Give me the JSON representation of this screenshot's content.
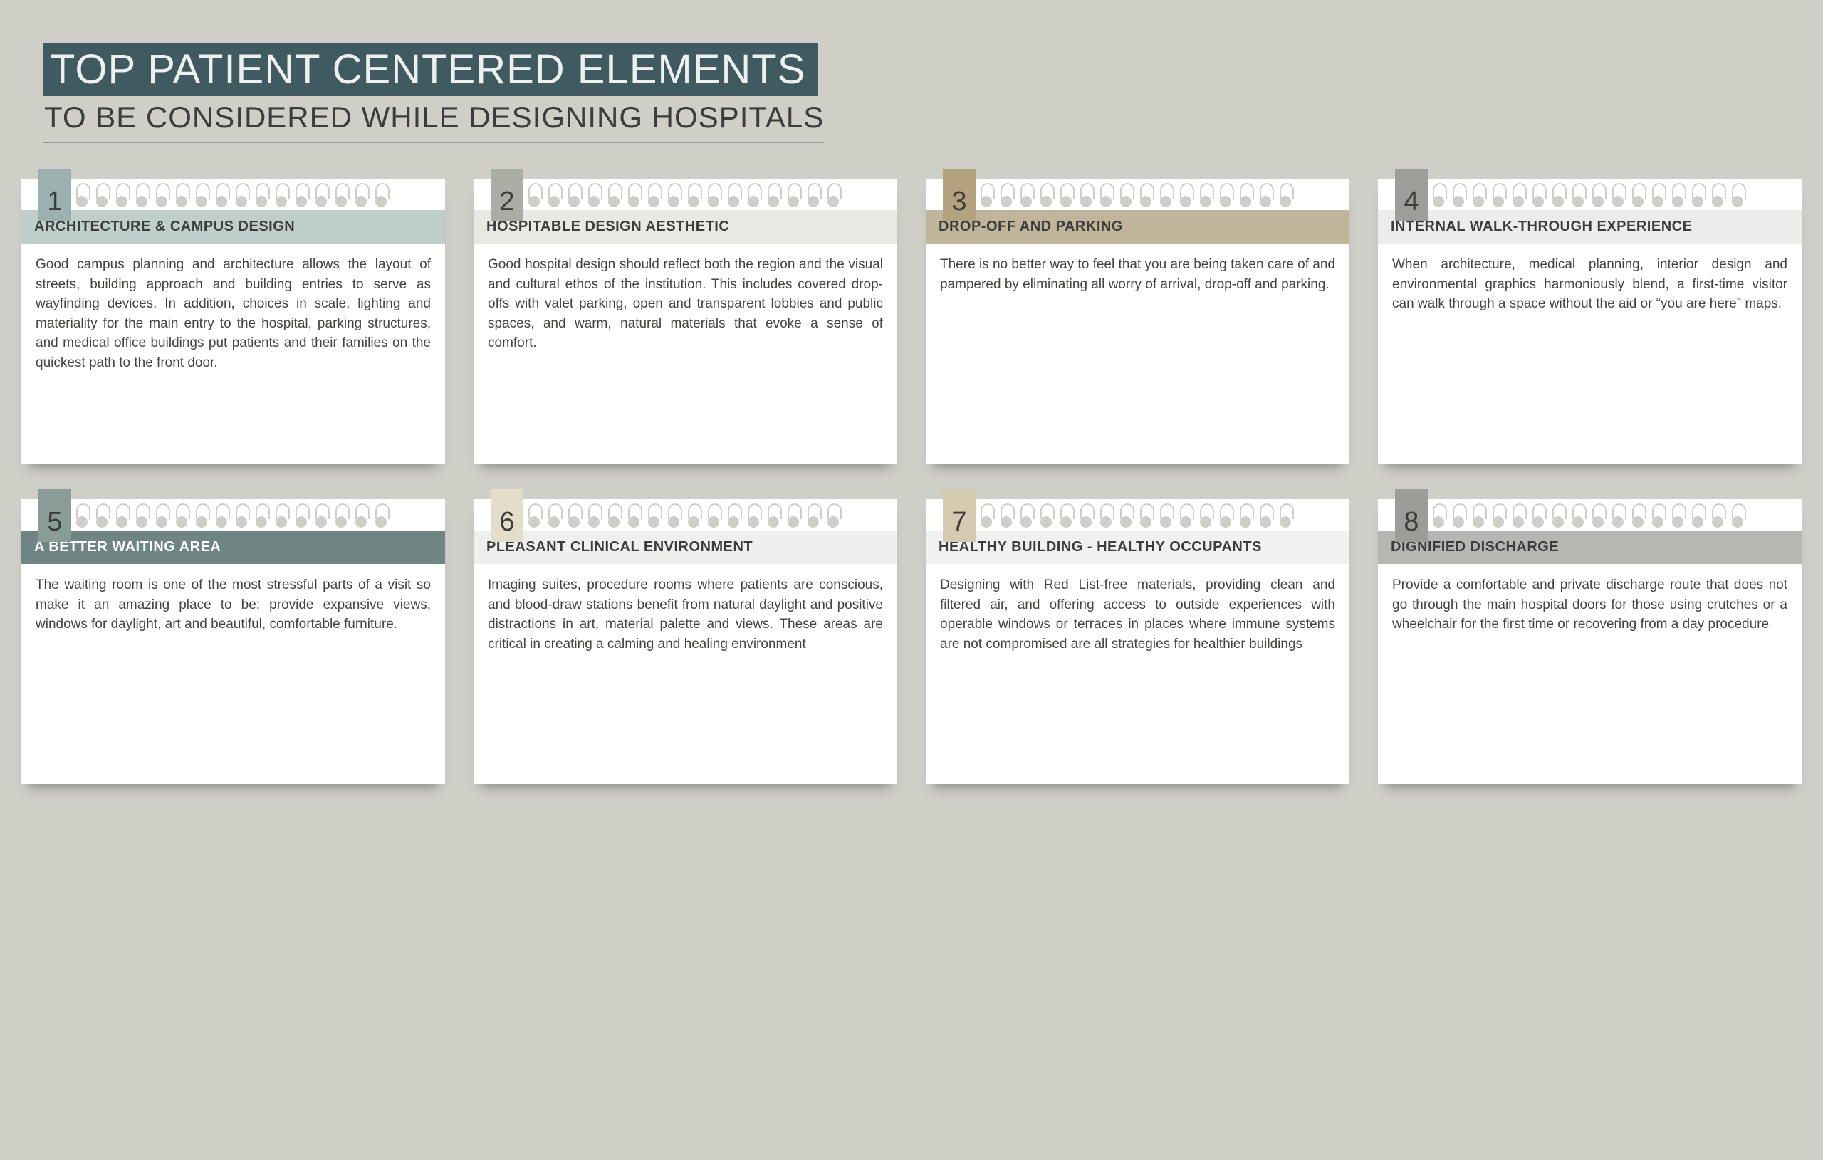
{
  "header": {
    "title_main": "TOP PATIENT CENTERED ELEMENTS",
    "title_sub": "TO BE CONSIDERED WHILE DESIGNING HOSPITALS",
    "title_main_bg": "#3f5a60",
    "title_main_color": "#eef0ef",
    "title_sub_color": "#3b3d3c"
  },
  "page": {
    "background_color": "#cfcfc8",
    "card_background": "#ffffff",
    "body_text_color": "#444542",
    "grid_columns": 4,
    "grid_rows": 2
  },
  "cards": [
    {
      "number": "1",
      "tab_color": "#9cb0af",
      "heading": "ARCHITECTURE & CAMPUS DESIGN",
      "heading_bg": "#c0cecb",
      "body": "Good campus planning and architecture allows the layout of streets, building approach and building entries to serve as wayfinding devices. In addition, choices in scale, lighting and materiality for the main entry to the hospital, parking structures, and medical office buildings put patients and their families on the quickest path to the front door."
    },
    {
      "number": "2",
      "tab_color": "#a9ada4",
      "heading": "HOSPITABLE DESIGN AESTHETIC",
      "heading_bg": "#e8e9e3",
      "body": "Good hospital design should reflect both the region and the visual and cultural ethos of the institution. This includes covered drop-offs with valet parking, open and transparent lobbies and public spaces, and warm, natural materials that evoke a sense of comfort."
    },
    {
      "number": "3",
      "tab_color": "#b4a27f",
      "heading": "DROP-OFF AND PARKING",
      "heading_bg": "#c0b49b",
      "body": "There is no better way to feel that you are being taken care of and pampered by eliminating all worry of arrival, drop-off and parking."
    },
    {
      "number": "4",
      "tab_color": "#9d9d99",
      "heading": "INTERNAL WALK-THROUGH EXPERIENCE",
      "heading_bg": "#ececea",
      "body": "When architecture, medical planning, interior design and environmental graphics harmoniously blend, a first-time visitor can walk through a space without the aid or “you are here” maps."
    },
    {
      "number": "5",
      "tab_color": "#8a9c98",
      "heading": "A BETTER WAITING AREA",
      "heading_bg": "#6e8583",
      "heading_text_color": "#ffffff",
      "body": "The waiting room is one of the most stressful parts of a visit so make it an amazing place to be: provide expansive views, windows for daylight, art and beautiful, comfortable furniture."
    },
    {
      "number": "6",
      "tab_color": "#e4ddca",
      "heading": "PLEASANT CLINICAL ENVIRONMENT",
      "heading_bg": "#efefed",
      "body": "Imaging suites, procedure rooms where patients are conscious, and blood-draw stations benefit from natural daylight and positive distractions in art, material palette and views. These areas are critical in creating a calming and healing environment"
    },
    {
      "number": "7",
      "tab_color": "#d6cbb1",
      "heading": "HEALTHY BUILDING - HEALTHY OCCUPANTS",
      "heading_bg": "#f1f1ef",
      "body": "Designing with Red List-free materials, providing clean and filtered air, and offering access to outside experiences with operable windows or terraces in places where immune systems are not compromised are all strategies for healthier buildings"
    },
    {
      "number": "8",
      "tab_color": "#9c9c98",
      "heading": "DIGNIFIED DISCHARGE",
      "heading_bg": "#b6b6b2",
      "body": "Provide a comfortable and private discharge route that does not go through the main hospital doors for those using crutches or a wheelchair for the first time or recovering from a day procedure"
    }
  ]
}
